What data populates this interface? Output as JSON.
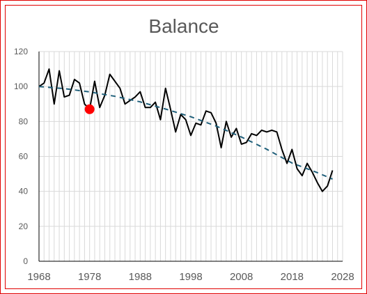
{
  "chart_data": {
    "type": "line",
    "title": "Balance",
    "xlabel": "",
    "ylabel": "",
    "xlim": [
      1968,
      2028
    ],
    "ylim": [
      0,
      120
    ],
    "x_ticks": [
      1968,
      1978,
      1988,
      1998,
      2008,
      2018,
      2028
    ],
    "y_ticks": [
      0,
      20,
      40,
      60,
      80,
      100,
      120
    ],
    "grid": true,
    "legend": "none",
    "series": [
      {
        "kind": "line",
        "color": "#000000",
        "x": [
          1968,
          1969,
          1970,
          1971,
          1972,
          1973,
          1974,
          1975,
          1976,
          1977,
          1978,
          1979,
          1980,
          1981,
          1982,
          1983,
          1984,
          1985,
          1986,
          1987,
          1988,
          1989,
          1990,
          1991,
          1992,
          1993,
          1994,
          1995,
          1996,
          1997,
          1998,
          1999,
          2000,
          2001,
          2002,
          2003,
          2004,
          2005,
          2006,
          2007,
          2008,
          2009,
          2010,
          2011,
          2012,
          2013,
          2014,
          2015,
          2016,
          2017,
          2018,
          2019,
          2020,
          2021,
          2022,
          2023,
          2024,
          2025,
          2026
        ],
        "y": [
          100,
          102,
          110,
          90,
          109,
          94,
          95,
          104,
          102,
          90,
          87,
          103,
          88,
          95,
          107,
          103,
          99,
          90,
          92,
          94,
          97,
          88,
          88,
          91,
          81,
          99,
          87,
          74,
          84,
          81,
          72,
          79,
          78,
          86,
          85,
          79,
          65,
          80,
          71,
          76,
          67,
          68,
          73,
          72,
          75,
          74,
          75,
          74,
          64,
          56,
          64,
          53,
          49,
          56,
          51,
          45,
          40,
          43,
          52
        ]
      },
      {
        "kind": "trendline",
        "style": "dashed",
        "color": "#1f5f7a",
        "x": [
          1968,
          1973,
          1978,
          1983,
          1988,
          1993,
          1998,
          2003,
          2008,
          2013,
          2018,
          2023,
          2026
        ],
        "y": [
          100,
          98.8,
          96.9,
          94.4,
          91.2,
          87.1,
          82.7,
          77.4,
          71.1,
          64.1,
          56.2,
          50.7,
          47
        ]
      },
      {
        "kind": "highlight-point",
        "color": "#ff0000",
        "x": [
          1978
        ],
        "y": [
          87
        ]
      }
    ]
  }
}
